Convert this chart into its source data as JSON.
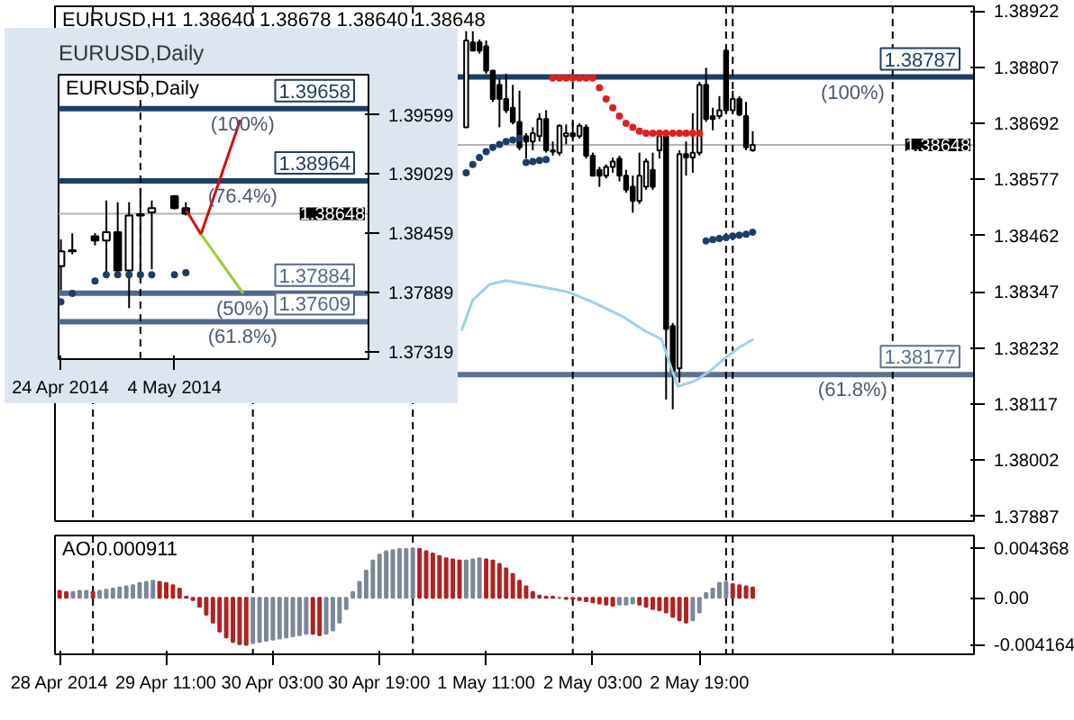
{
  "chart_data": [
    {
      "type": "candlestick",
      "title": "EURUSD,H1 1.38640 1.38678 1.38640 1.38648",
      "xlim": [
        "2014-04-28T18:18",
        "2014-05-04T12:12"
      ],
      "ylim": [
        1.37877,
        1.38932
      ],
      "yticks": [
        1.38922,
        1.38807,
        1.38692,
        1.38577,
        1.38462,
        1.38347,
        1.38232,
        1.38117,
        1.38002,
        1.37887
      ],
      "tick_labels": "y",
      "marker": "circle",
      "x": [
        "2014-05-01T08:00",
        "2014-05-01T09:00",
        "2014-05-01T10:00",
        "2014-05-01T11:00",
        "2014-05-01T12:00",
        "2014-05-01T13:00",
        "2014-05-01T14:00",
        "2014-05-01T15:00",
        "2014-05-01T16:00",
        "2014-05-01T17:00",
        "2014-05-01T18:00",
        "2014-05-01T19:00",
        "2014-05-01T20:00",
        "2014-05-01T21:00",
        "2014-05-01T22:00",
        "2014-05-01T23:00",
        "2014-05-02T00:00",
        "2014-05-02T01:00",
        "2014-05-02T02:00",
        "2014-05-02T03:00",
        "2014-05-02T04:00",
        "2014-05-02T05:00",
        "2014-05-02T06:00",
        "2014-05-02T07:00",
        "2014-05-02T08:00",
        "2014-05-02T09:00",
        "2014-05-02T10:00",
        "2014-05-02T11:00",
        "2014-05-02T12:00",
        "2014-05-02T13:00",
        "2014-05-02T14:00",
        "2014-05-02T15:00",
        "2014-05-02T16:00",
        "2014-05-02T17:00",
        "2014-05-02T18:00",
        "2014-05-02T19:00",
        "2014-05-02T20:00",
        "2014-05-02T21:00",
        "2014-05-02T22:00",
        "2014-05-02T23:00",
        "2014-05-03T00:00",
        "2014-05-03T01:00",
        "2014-05-03T02:00",
        "2014-05-03T03:00"
      ],
      "ohlc": [
        [
          1.38684,
          1.38881,
          1.38684,
          1.38862
        ],
        [
          1.38858,
          1.38881,
          1.38841,
          1.38841
        ],
        [
          1.38858,
          1.38864,
          1.38835,
          1.38841
        ],
        [
          1.3885,
          1.38862,
          1.38794,
          1.388
        ],
        [
          1.388,
          1.388,
          1.38736,
          1.38742
        ],
        [
          1.38771,
          1.38783,
          1.38684,
          1.38742
        ],
        [
          1.38742,
          1.38794,
          1.38713,
          1.38719
        ],
        [
          1.38724,
          1.38771,
          1.3869,
          1.38695
        ],
        [
          1.38695,
          1.38759,
          1.38637,
          1.38643
        ],
        [
          1.38666,
          1.38672,
          1.3862,
          1.38655
        ],
        [
          1.38655,
          1.38684,
          1.38637,
          1.38672
        ],
        [
          1.38666,
          1.38713,
          1.38655,
          1.38701
        ],
        [
          1.38701,
          1.38719,
          1.38632,
          1.38637
        ],
        [
          1.38637,
          1.38655,
          1.38626,
          1.38634
        ],
        [
          1.38632,
          1.3869,
          1.38626,
          1.38687
        ],
        [
          1.38666,
          1.3869,
          1.38649,
          1.38672
        ],
        [
          1.38672,
          1.38695,
          1.38655,
          1.38666
        ],
        [
          1.38666,
          1.38692,
          1.38661,
          1.38687
        ],
        [
          1.38684,
          1.3869,
          1.3862,
          1.38626
        ],
        [
          1.38626,
          1.38632,
          1.38585,
          1.38585
        ],
        [
          1.38597,
          1.38603,
          1.38562,
          1.38585
        ],
        [
          1.38585,
          1.38608,
          1.38579,
          1.38603
        ],
        [
          1.38603,
          1.38622,
          1.38591,
          1.38614
        ],
        [
          1.3862,
          1.38626,
          1.38573,
          1.38585
        ],
        [
          1.38585,
          1.38597,
          1.3855,
          1.38556
        ],
        [
          1.38562,
          1.38585,
          1.38509,
          1.38533
        ],
        [
          1.38533,
          1.38632,
          1.38527,
          1.38585
        ],
        [
          1.38562,
          1.3862,
          1.38556,
          1.38614
        ],
        [
          1.38597,
          1.38632,
          1.38556,
          1.38562
        ],
        [
          1.38637,
          1.38672,
          1.3862,
          1.38666
        ],
        [
          1.38666,
          1.38666,
          1.38126,
          1.38271
        ],
        [
          1.38277,
          1.38283,
          1.38106,
          1.38184
        ],
        [
          1.3819,
          1.38637,
          1.38161,
          1.38629
        ],
        [
          1.38629,
          1.38655,
          1.38585,
          1.38622
        ],
        [
          1.38622,
          1.38713,
          1.38591,
          1.38632
        ],
        [
          1.38632,
          1.38777,
          1.38626,
          1.38771
        ],
        [
          1.38771,
          1.38806,
          1.38695,
          1.38701
        ],
        [
          1.38707,
          1.38724,
          1.38678,
          1.38701
        ],
        [
          1.38707,
          1.38748,
          1.38701,
          1.38719
        ],
        [
          1.38841,
          1.38846,
          1.38713,
          1.38719
        ],
        [
          1.38719,
          1.38759,
          1.38713,
          1.38742
        ],
        [
          1.38742,
          1.38748,
          1.38707,
          1.3871
        ],
        [
          1.38707,
          1.38736,
          1.38637,
          1.38643
        ],
        [
          1.38637,
          1.38676,
          1.38634,
          1.38648
        ]
      ],
      "series": [
        {
          "type": "scatter",
          "color": "#1e3d66",
          "x": [
            "2014-05-01T08:00",
            "2014-05-01T09:00",
            "2014-05-01T10:00",
            "2014-05-01T11:00",
            "2014-05-01T12:00",
            "2014-05-01T13:00",
            "2014-05-01T14:00",
            "2014-05-01T15:00",
            "2014-05-01T16:00",
            "2014-05-01T17:00",
            "2014-05-01T18:00",
            "2014-05-01T19:00",
            "2014-05-01T20:00"
          ],
          "values": [
            1.38591,
            1.38608,
            1.38622,
            1.38634,
            1.38643,
            1.38649,
            1.38655,
            1.38658,
            1.38662,
            1.38612,
            1.38614,
            1.38616,
            1.38618
          ]
        },
        {
          "type": "scatter",
          "color": "#e02020",
          "x": [
            "2014-05-01T21:00",
            "2014-05-01T22:00",
            "2014-05-01T23:00",
            "2014-05-02T00:00",
            "2014-05-02T01:00",
            "2014-05-02T02:00",
            "2014-05-02T03:00",
            "2014-05-02T04:00",
            "2014-05-02T05:00",
            "2014-05-02T06:00",
            "2014-05-02T07:00",
            "2014-05-02T08:00",
            "2014-05-02T09:00",
            "2014-05-02T10:00",
            "2014-05-02T11:00",
            "2014-05-02T12:00",
            "2014-05-02T13:00",
            "2014-05-02T14:00",
            "2014-05-02T15:00",
            "2014-05-02T16:00",
            "2014-05-02T17:00",
            "2014-05-02T18:00",
            "2014-05-02T19:00"
          ],
          "values": [
            1.38785,
            1.38785,
            1.38785,
            1.38785,
            1.38785,
            1.38785,
            1.38785,
            1.38765,
            1.38742,
            1.38724,
            1.38707,
            1.38692,
            1.38684,
            1.38676,
            1.38672,
            1.38672,
            1.38672,
            1.38672,
            1.38672,
            1.38672,
            1.38672,
            1.38672,
            1.38672
          ]
        },
        {
          "type": "scatter",
          "color": "#1e3d66",
          "x": [
            "2014-05-02T20:00",
            "2014-05-02T21:00",
            "2014-05-02T22:00",
            "2014-05-02T23:00",
            "2014-05-03T00:00",
            "2014-05-03T01:00",
            "2014-05-03T02:00",
            "2014-05-03T03:00"
          ],
          "values": [
            1.38451,
            1.38454,
            1.38456,
            1.38458,
            1.38461,
            1.38463,
            1.38465,
            1.38469
          ]
        },
        {
          "type": "line",
          "marker": "none",
          "color": "#9fd0e8",
          "x": [
            "2014-05-01T07:18",
            "2014-05-01T09:00",
            "2014-05-01T11:30",
            "2014-05-01T14:00",
            "2014-05-01T16:30",
            "2014-05-01T19:00",
            "2014-05-01T23:12",
            "2014-05-02T03:18",
            "2014-05-02T07:30",
            "2014-05-02T10:48",
            "2014-05-02T13:18",
            "2014-05-02T15:00",
            "2014-05-02T15:48",
            "2014-05-02T18:18",
            "2014-05-02T20:48",
            "2014-05-02T23:18",
            "2014-05-03T01:00",
            "2014-05-03T03:06"
          ],
          "values": [
            1.38267,
            1.3833,
            1.38362,
            1.3837,
            1.38364,
            1.38358,
            1.38347,
            1.38324,
            1.38296,
            1.38267,
            1.3825,
            1.38182,
            1.38153,
            1.38164,
            1.38187,
            1.38216,
            1.38233,
            1.3825
          ]
        }
      ],
      "annotations": [
        {
          "text": "(100%)",
          "x": "2014-05-03T18:00",
          "y": 1.38787
        },
        {
          "text": "(61.8%)",
          "x": "2014-05-03T18:00",
          "y": 1.38177
        },
        {
          "text": "1.38648",
          "y": 1.38648
        }
      ],
      "ref_lines": [
        {
          "axis": "y",
          "value": 1.38787,
          "label": "1.38787",
          "color": "#1e3d66"
        },
        {
          "axis": "y",
          "value": 1.38177,
          "label": "1.38177",
          "color": "#5d7190"
        },
        {
          "axis": "y",
          "value": 1.38648,
          "label": null,
          "color": "#b4b4b4"
        },
        {
          "axis": "x",
          "value": "2014-04-29T00:00",
          "label": null,
          "color": "#000000",
          "line_style": "dashed"
        },
        {
          "axis": "x",
          "value": "2014-04-30T00:00",
          "label": null,
          "color": "#000000",
          "line_style": "dashed"
        },
        {
          "axis": "x",
          "value": "2014-05-01T00:00",
          "label": null,
          "color": "#000000",
          "line_style": "dashed"
        },
        {
          "axis": "x",
          "value": "2014-05-02T00:00",
          "label": null,
          "color": "#000000",
          "line_style": "dashed"
        },
        {
          "axis": "x",
          "value": "2014-05-02T23:00",
          "label": null,
          "color": "#000000",
          "line_style": "dashed"
        },
        {
          "axis": "x",
          "value": "2014-05-03T00:00",
          "label": null,
          "color": "#000000",
          "line_style": "dashed"
        },
        {
          "axis": "x",
          "value": "2014-05-04T00:00",
          "label": null,
          "color": "#000000",
          "line_style": "dashed"
        }
      ]
    },
    {
      "type": "candlestick",
      "title": "EURUSD,Daily",
      "subtitle": "EURUSD,Daily",
      "xlim": [
        "2014-04-23T19:00",
        "2014-05-21T02:00"
      ],
      "ylim": [
        1.37249,
        1.39985
      ],
      "yticks": [
        1.39599,
        1.39029,
        1.38459,
        1.37889,
        1.37319
      ],
      "xticks": [
        {
          "value": "2014-04-24",
          "label": "24 Apr 2014"
        },
        {
          "value": "2014-05-04",
          "label": "4 May 2014"
        }
      ],
      "marker": "circle",
      "x": [
        "2014-04-24",
        "2014-04-25",
        "2014-04-27",
        "2014-04-28",
        "2014-04-29",
        "2014-04-30",
        "2014-05-01",
        "2014-05-02",
        "2014-05-04",
        "2014-05-05"
      ],
      "ohlc": [
        [
          1.38142,
          1.38401,
          1.37911,
          1.38286
        ],
        [
          1.38297,
          1.38459,
          1.38257,
          1.38286
        ],
        [
          1.3843,
          1.38459,
          1.38343,
          1.3839
        ],
        [
          1.3839,
          1.38775,
          1.38084,
          1.3847
        ],
        [
          1.3847,
          1.38758,
          1.38055,
          1.38101
        ],
        [
          1.38101,
          1.38758,
          1.37739,
          1.38631
        ],
        [
          1.38643,
          1.3889,
          1.38084,
          1.38631
        ],
        [
          1.3866,
          1.38775,
          1.38113,
          1.38701
        ],
        [
          1.38816,
          1.38827,
          1.38689,
          1.38701
        ],
        [
          1.38701,
          1.38758,
          1.38631,
          1.38648
        ]
      ],
      "series": [
        {
          "type": "scatter",
          "color": "#1e3d66",
          "x": [
            "2014-04-24",
            "2014-04-25",
            "2014-04-27",
            "2014-04-28",
            "2014-04-29",
            "2014-04-30",
            "2014-05-01",
            "2014-05-02",
            "2014-05-04",
            "2014-05-05"
          ],
          "values": [
            1.378,
            1.3788,
            1.38,
            1.3806,
            1.3806,
            1.3806,
            1.3806,
            1.3806,
            1.3806,
            1.3808
          ]
        },
        {
          "type": "line",
          "marker": "none",
          "color": "#d01010",
          "x": [
            "2014-05-05T01:00",
            "2014-05-06T08:00",
            "2014-05-09T19:00"
          ],
          "values": [
            1.3868,
            1.3845,
            1.3955
          ]
        },
        {
          "type": "line",
          "marker": "none",
          "color": "#9acd32",
          "x": [
            "2014-05-06T08:00",
            "2014-05-10T01:30"
          ],
          "values": [
            1.3845,
            1.3788
          ]
        }
      ],
      "annotations": [
        {
          "text": "(100%)",
          "x": "2014-05-10T00:00",
          "y": 1.39658
        },
        {
          "text": "(76.4%)",
          "x": "2014-05-10T00:00",
          "y": 1.38964
        },
        {
          "text": "(50%)",
          "x": "2014-05-10T00:00",
          "y": 1.37884
        },
        {
          "text": "(61.8%)",
          "x": "2014-05-10T00:00",
          "y": 1.37609
        },
        {
          "text": "1.38648",
          "y": 1.38648
        }
      ],
      "ref_lines": [
        {
          "axis": "y",
          "value": 1.39658,
          "label": "1.39658",
          "color": "#1e3d66"
        },
        {
          "axis": "y",
          "value": 1.38964,
          "label": "1.38964",
          "color": "#1e3d66"
        },
        {
          "axis": "y",
          "value": 1.37884,
          "label": "1.37884",
          "color": "#52688f"
        },
        {
          "axis": "y",
          "value": 1.37609,
          "label": "1.37609",
          "color": "#52688f"
        },
        {
          "axis": "y",
          "value": 1.38648,
          "label": null,
          "color": "#b4b4b4"
        },
        {
          "axis": "x",
          "value": "2014-05-01",
          "label": null,
          "color": "#000000",
          "line_style": "dashed"
        }
      ]
    },
    {
      "type": "bar",
      "title": "AO 0.000911",
      "xlim": [
        "2014-04-28T18:18",
        "2014-05-04T12:12"
      ],
      "ylim": [
        -0.005,
        0.0055
      ],
      "yticks": [
        0.004368,
        {
          "value": 0,
          "label": "0.00"
        },
        -0.004164
      ],
      "xticks": [
        {
          "value": "2014-04-28T19:00",
          "label": "28 Apr 2014"
        },
        {
          "value": "2014-04-29T11:00",
          "label": "29 Apr 11:00"
        },
        {
          "value": "2014-04-30T03:00",
          "label": "30 Apr 03:00"
        },
        {
          "value": "2014-04-30T19:00",
          "label": "30 Apr 19:00"
        },
        {
          "value": "2014-05-01T11:00",
          "label": "1 May 11:00"
        },
        {
          "value": "2014-05-02T03:00",
          "label": "2 May 03:00"
        },
        {
          "value": "2014-05-02T19:00",
          "label": "2 May 19:00"
        }
      ],
      "x": [
        "2014-04-28T19:00",
        "2014-04-28T20:00",
        "2014-04-28T21:00",
        "2014-04-28T22:00",
        "2014-04-28T23:00",
        "2014-04-29T00:00",
        "2014-04-29T01:00",
        "2014-04-29T02:00",
        "2014-04-29T03:00",
        "2014-04-29T04:00",
        "2014-04-29T05:00",
        "2014-04-29T06:00",
        "2014-04-29T07:00",
        "2014-04-29T08:00",
        "2014-04-29T09:00",
        "2014-04-29T10:00",
        "2014-04-29T11:00",
        "2014-04-29T12:00",
        "2014-04-29T13:00",
        "2014-04-29T14:00",
        "2014-04-29T15:00",
        "2014-04-29T16:00",
        "2014-04-29T17:00",
        "2014-04-29T18:00",
        "2014-04-29T19:00",
        "2014-04-29T20:00",
        "2014-04-29T21:00",
        "2014-04-29T22:00",
        "2014-04-29T23:00",
        "2014-04-30T00:00",
        "2014-04-30T01:00",
        "2014-04-30T02:00",
        "2014-04-30T03:00",
        "2014-04-30T04:00",
        "2014-04-30T05:00",
        "2014-04-30T06:00",
        "2014-04-30T07:00",
        "2014-04-30T08:00",
        "2014-04-30T09:00",
        "2014-04-30T10:00",
        "2014-04-30T11:00",
        "2014-04-30T12:00",
        "2014-04-30T13:00",
        "2014-04-30T14:00",
        "2014-04-30T15:00",
        "2014-04-30T16:00",
        "2014-04-30T17:00",
        "2014-04-30T18:00",
        "2014-04-30T19:00",
        "2014-04-30T20:00",
        "2014-04-30T21:00",
        "2014-04-30T22:00",
        "2014-04-30T23:00",
        "2014-05-01T00:00",
        "2014-05-01T01:00",
        "2014-05-01T02:00",
        "2014-05-01T03:00",
        "2014-05-01T04:00",
        "2014-05-01T05:00",
        "2014-05-01T06:00",
        "2014-05-01T07:00",
        "2014-05-01T08:00",
        "2014-05-01T09:00",
        "2014-05-01T10:00",
        "2014-05-01T11:00",
        "2014-05-01T12:00",
        "2014-05-01T13:00",
        "2014-05-01T14:00",
        "2014-05-01T15:00",
        "2014-05-01T16:00",
        "2014-05-01T17:00",
        "2014-05-01T18:00",
        "2014-05-01T19:00",
        "2014-05-01T20:00",
        "2014-05-01T21:00",
        "2014-05-01T22:00",
        "2014-05-01T23:00",
        "2014-05-02T00:00",
        "2014-05-02T01:00",
        "2014-05-02T02:00",
        "2014-05-02T03:00",
        "2014-05-02T04:00",
        "2014-05-02T05:00",
        "2014-05-02T06:00",
        "2014-05-02T07:00",
        "2014-05-02T08:00",
        "2014-05-02T09:00",
        "2014-05-02T10:00",
        "2014-05-02T11:00",
        "2014-05-02T12:00",
        "2014-05-02T13:00",
        "2014-05-02T14:00",
        "2014-05-02T15:00",
        "2014-05-02T16:00",
        "2014-05-02T17:00",
        "2014-05-02T18:00",
        "2014-05-02T19:00",
        "2014-05-02T20:00",
        "2014-05-02T21:00",
        "2014-05-02T22:00",
        "2014-05-02T23:00",
        "2014-05-03T00:00",
        "2014-05-03T01:00",
        "2014-05-03T02:00",
        "2014-05-03T03:00"
      ],
      "values": [
        0.0006,
        0.0005,
        0.0005,
        0.0006,
        0.0006,
        0.0005,
        0.0006,
        0.0007,
        0.0008,
        0.0009,
        0.001,
        0.0011,
        0.0013,
        0.0014,
        0.0015,
        0.0014,
        0.0013,
        0.0011,
        0.0008,
        0.0001,
        -0.0002,
        -0.0008,
        -0.0015,
        -0.0022,
        -0.003,
        -0.0035,
        -0.0039,
        -0.0041,
        -0.004164,
        -0.004,
        -0.0039,
        -0.0038,
        -0.0037,
        -0.0036,
        -0.0035,
        -0.0034,
        -0.0033,
        -0.0032,
        -0.0032,
        -0.0033,
        -0.0032,
        -0.0029,
        -0.0022,
        -0.001,
        0.0005,
        0.0014,
        0.0024,
        0.0033,
        0.0038,
        0.0041,
        0.0042,
        0.0043,
        0.0043,
        0.004368,
        0.0043,
        0.0041,
        0.0039,
        0.0037,
        0.0035,
        0.0034,
        0.0033,
        0.0033,
        0.0034,
        0.0035,
        0.0034,
        0.0033,
        0.003,
        0.0026,
        0.0021,
        0.0015,
        0.001,
        0.0005,
        0.0002,
        0.0001,
        0.0001,
        0.0,
        -0.0001,
        -0.0001,
        -0.0002,
        -0.0003,
        -0.0004,
        -0.0005,
        -0.0006,
        -0.0007,
        -0.0006,
        -0.0006,
        -0.0005,
        -0.0006,
        -0.0008,
        -0.001,
        -0.0011,
        -0.0013,
        -0.0017,
        -0.002,
        -0.0022,
        -0.002,
        -0.0013,
        0.0004,
        0.0008,
        0.0013,
        0.0014,
        0.0012,
        0.0011,
        0.001,
        0.000911
      ],
      "colors": [
        "#b22222",
        "#b22222",
        "#7b8799",
        "#7b8799",
        "#7b8799",
        "#b22222",
        "#7b8799",
        "#7b8799",
        "#7b8799",
        "#7b8799",
        "#7b8799",
        "#7b8799",
        "#7b8799",
        "#7b8799",
        "#7b8799",
        "#b22222",
        "#b22222",
        "#b22222",
        "#b22222",
        "#b22222",
        "#b22222",
        "#b22222",
        "#b22222",
        "#b22222",
        "#b22222",
        "#b22222",
        "#b22222",
        "#b22222",
        "#b22222",
        "#7b8799",
        "#7b8799",
        "#7b8799",
        "#7b8799",
        "#7b8799",
        "#7b8799",
        "#7b8799",
        "#7b8799",
        "#7b8799",
        "#b22222",
        "#b22222",
        "#7b8799",
        "#7b8799",
        "#7b8799",
        "#7b8799",
        "#7b8799",
        "#7b8799",
        "#7b8799",
        "#7b8799",
        "#7b8799",
        "#7b8799",
        "#7b8799",
        "#7b8799",
        "#7b8799",
        "#7b8799",
        "#b22222",
        "#b22222",
        "#b22222",
        "#b22222",
        "#b22222",
        "#b22222",
        "#b22222",
        "#7b8799",
        "#7b8799",
        "#7b8799",
        "#b22222",
        "#b22222",
        "#b22222",
        "#b22222",
        "#b22222",
        "#b22222",
        "#b22222",
        "#b22222",
        "#b22222",
        "#b22222",
        "#b22222",
        "#b22222",
        "#b22222",
        "#b22222",
        "#b22222",
        "#b22222",
        "#b22222",
        "#b22222",
        "#b22222",
        "#b22222",
        "#7b8799",
        "#7b8799",
        "#7b8799",
        "#b22222",
        "#b22222",
        "#b22222",
        "#b22222",
        "#b22222",
        "#b22222",
        "#b22222",
        "#b22222",
        "#7b8799",
        "#7b8799",
        "#7b8799",
        "#7b8799",
        "#7b8799",
        "#7b8799",
        "#b22222",
        "#b22222",
        "#b22222",
        "#b22222"
      ],
      "ref_lines": [
        {
          "axis": "x",
          "value": "2014-04-29T00:00",
          "label": null,
          "color": "#000000",
          "line_style": "dashed"
        },
        {
          "axis": "x",
          "value": "2014-04-30T00:00",
          "label": null,
          "color": "#000000",
          "line_style": "dashed"
        },
        {
          "axis": "x",
          "value": "2014-05-01T00:00",
          "label": null,
          "color": "#000000",
          "line_style": "dashed"
        },
        {
          "axis": "x",
          "value": "2014-05-02T00:00",
          "label": null,
          "color": "#000000",
          "line_style": "dashed"
        },
        {
          "axis": "x",
          "value": "2014-05-02T23:00",
          "label": null,
          "color": "#000000",
          "line_style": "dashed"
        },
        {
          "axis": "x",
          "value": "2014-05-03T00:00",
          "label": null,
          "color": "#000000",
          "line_style": "dashed"
        },
        {
          "axis": "x",
          "value": "2014-05-04T00:00",
          "label": null,
          "color": "#000000",
          "line_style": "dashed"
        }
      ]
    }
  ]
}
